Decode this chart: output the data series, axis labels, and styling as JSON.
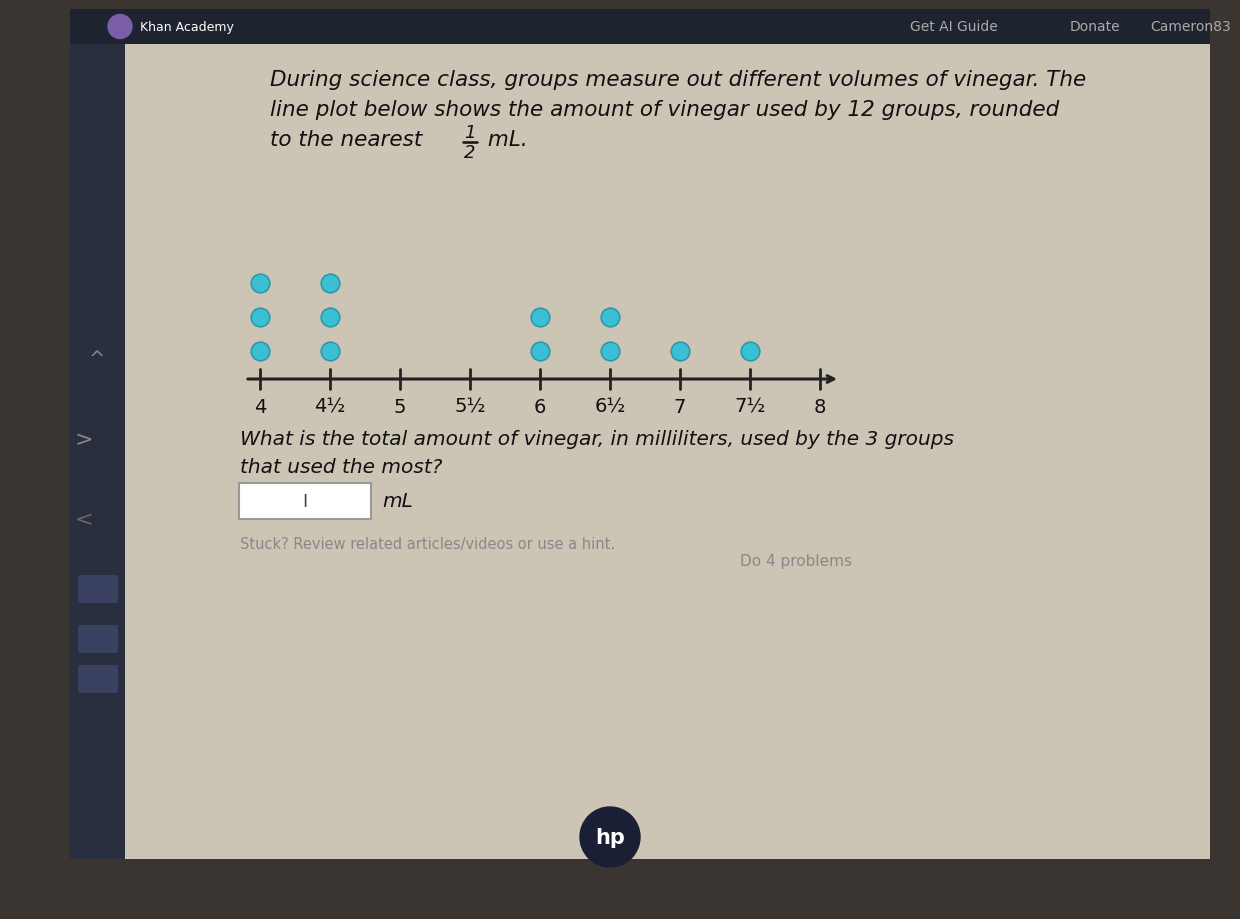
{
  "title_line1": "During science class, groups measure out different volumes of vinegar. The",
  "title_line2": "line plot below shows the amount of vinegar used by 12 groups, rounded",
  "title_line3": "to the nearest",
  "title_frac_num": "1",
  "title_frac_den": "2",
  "title_line3_end": " mL.",
  "question_line1": "What is the total amount of vinegar, in milliliters, used by the 3 groups",
  "question_line2": "that used the most?",
  "input_label": "mL",
  "stuck_text": "Stuck? Review related articles/videos or use a hint.",
  "do_problems": "Do 4 problems",
  "donate_text": "Donate",
  "cameron_text": "Cameron83",
  "axis_ticks": [
    4,
    4.5,
    5,
    5.5,
    6,
    6.5,
    7,
    7.5,
    8
  ],
  "tick_labels": [
    "4",
    "4½",
    "5",
    "5½",
    "6",
    "6½",
    "7",
    "7½",
    "8"
  ],
  "dot_data": {
    "4.0": 3,
    "4.5": 3,
    "6.0": 2,
    "6.5": 2,
    "7.0": 1,
    "7.5": 1
  },
  "dot_color": "#3bbfd4",
  "dot_size": 180,
  "dot_edge_color": "#2a9aaa",
  "outer_bg": "#3a3530",
  "screen_bg": "#ccc5b5",
  "webpage_bg": "#ccc5b5",
  "nav_bg": "#1e2330",
  "sidebar_bg": "#2a2f3f",
  "text_color": "#111111",
  "axis_color": "#222222",
  "input_box_color": "#ffffff",
  "faded_text": "#888888",
  "nav_text": "#aaaaaa",
  "hp_circle_color": "#1a1f35",
  "left_edge_color": "#1a1f2e"
}
